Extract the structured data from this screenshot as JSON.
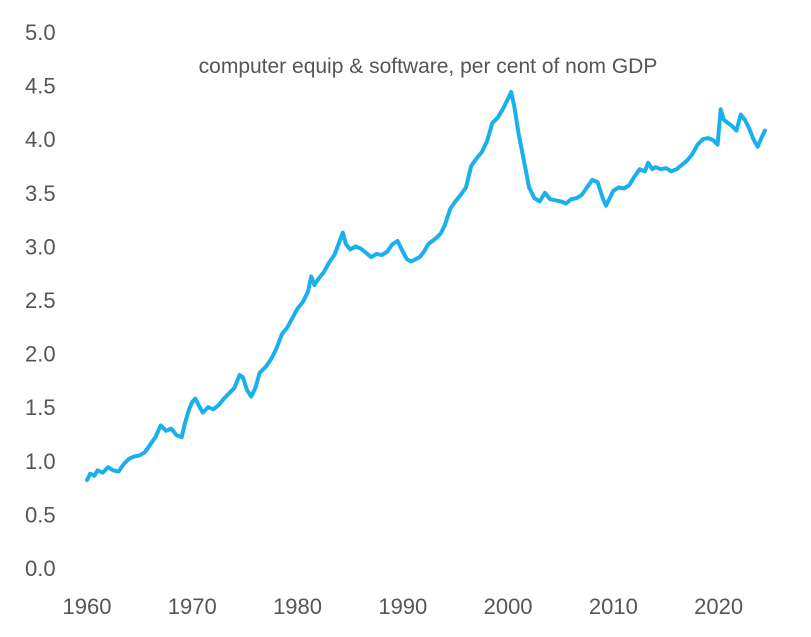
{
  "chart_data": {
    "type": "line",
    "title": "computer equip & software, per cent of nom GDP",
    "xlabel": "",
    "ylabel": "",
    "xlim": [
      1960,
      2024.5
    ],
    "ylim": [
      0,
      5
    ],
    "x_ticks": [
      "1960",
      "1970",
      "1980",
      "1990",
      "2000",
      "2010",
      "2020"
    ],
    "y_ticks": [
      "0.0",
      "0.5",
      "1.0",
      "1.5",
      "2.0",
      "2.5",
      "3.0",
      "3.5",
      "4.0",
      "4.5",
      "5.0"
    ],
    "grid": false,
    "legend": "none",
    "series": [
      {
        "color": "#1ab0ec",
        "points": [
          [
            1960.0,
            0.82
          ],
          [
            1960.3,
            0.88
          ],
          [
            1960.7,
            0.86
          ],
          [
            1961.0,
            0.91
          ],
          [
            1961.5,
            0.89
          ],
          [
            1962.0,
            0.94
          ],
          [
            1962.5,
            0.91
          ],
          [
            1963.0,
            0.9
          ],
          [
            1963.5,
            0.97
          ],
          [
            1964.0,
            1.02
          ],
          [
            1964.5,
            1.04
          ],
          [
            1965.0,
            1.05
          ],
          [
            1965.5,
            1.08
          ],
          [
            1966.0,
            1.15
          ],
          [
            1966.5,
            1.22
          ],
          [
            1967.0,
            1.33
          ],
          [
            1967.5,
            1.28
          ],
          [
            1968.0,
            1.3
          ],
          [
            1968.5,
            1.24
          ],
          [
            1969.0,
            1.22
          ],
          [
            1969.3,
            1.35
          ],
          [
            1969.7,
            1.48
          ],
          [
            1970.0,
            1.55
          ],
          [
            1970.3,
            1.58
          ],
          [
            1970.6,
            1.52
          ],
          [
            1971.0,
            1.45
          ],
          [
            1971.5,
            1.5
          ],
          [
            1972.0,
            1.48
          ],
          [
            1972.5,
            1.52
          ],
          [
            1973.0,
            1.58
          ],
          [
            1973.5,
            1.63
          ],
          [
            1974.0,
            1.68
          ],
          [
            1974.5,
            1.8
          ],
          [
            1974.8,
            1.78
          ],
          [
            1975.2,
            1.66
          ],
          [
            1975.6,
            1.6
          ],
          [
            1976.0,
            1.68
          ],
          [
            1976.4,
            1.82
          ],
          [
            1977.0,
            1.88
          ],
          [
            1977.5,
            1.95
          ],
          [
            1978.0,
            2.05
          ],
          [
            1978.5,
            2.18
          ],
          [
            1979.0,
            2.24
          ],
          [
            1979.5,
            2.33
          ],
          [
            1980.0,
            2.42
          ],
          [
            1980.5,
            2.48
          ],
          [
            1981.0,
            2.58
          ],
          [
            1981.3,
            2.72
          ],
          [
            1981.6,
            2.64
          ],
          [
            1982.0,
            2.7
          ],
          [
            1982.5,
            2.76
          ],
          [
            1983.0,
            2.85
          ],
          [
            1983.5,
            2.92
          ],
          [
            1984.0,
            3.05
          ],
          [
            1984.3,
            3.13
          ],
          [
            1984.6,
            3.02
          ],
          [
            1985.0,
            2.97
          ],
          [
            1985.5,
            3.0
          ],
          [
            1986.0,
            2.98
          ],
          [
            1986.5,
            2.94
          ],
          [
            1987.0,
            2.9
          ],
          [
            1987.5,
            2.93
          ],
          [
            1988.0,
            2.92
          ],
          [
            1988.5,
            2.95
          ],
          [
            1989.0,
            3.02
          ],
          [
            1989.5,
            3.05
          ],
          [
            1990.0,
            2.95
          ],
          [
            1990.4,
            2.88
          ],
          [
            1990.8,
            2.86
          ],
          [
            1991.2,
            2.88
          ],
          [
            1991.6,
            2.9
          ],
          [
            1992.0,
            2.95
          ],
          [
            1992.4,
            3.02
          ],
          [
            1992.8,
            3.05
          ],
          [
            1993.2,
            3.08
          ],
          [
            1993.6,
            3.12
          ],
          [
            1994.0,
            3.2
          ],
          [
            1994.5,
            3.35
          ],
          [
            1995.0,
            3.42
          ],
          [
            1995.5,
            3.48
          ],
          [
            1996.0,
            3.55
          ],
          [
            1996.5,
            3.75
          ],
          [
            1997.0,
            3.82
          ],
          [
            1997.5,
            3.88
          ],
          [
            1998.0,
            3.98
          ],
          [
            1998.5,
            4.15
          ],
          [
            1999.0,
            4.2
          ],
          [
            1999.5,
            4.28
          ],
          [
            2000.0,
            4.38
          ],
          [
            2000.3,
            4.44
          ],
          [
            2000.6,
            4.3
          ],
          [
            2001.0,
            4.05
          ],
          [
            2001.5,
            3.8
          ],
          [
            2002.0,
            3.55
          ],
          [
            2002.5,
            3.45
          ],
          [
            2003.0,
            3.42
          ],
          [
            2003.5,
            3.5
          ],
          [
            2004.0,
            3.44
          ],
          [
            2004.5,
            3.43
          ],
          [
            2005.0,
            3.42
          ],
          [
            2005.5,
            3.4
          ],
          [
            2006.0,
            3.44
          ],
          [
            2006.5,
            3.45
          ],
          [
            2007.0,
            3.48
          ],
          [
            2007.5,
            3.55
          ],
          [
            2008.0,
            3.62
          ],
          [
            2008.5,
            3.6
          ],
          [
            2009.0,
            3.45
          ],
          [
            2009.3,
            3.38
          ],
          [
            2009.7,
            3.46
          ],
          [
            2010.0,
            3.52
          ],
          [
            2010.5,
            3.55
          ],
          [
            2011.0,
            3.54
          ],
          [
            2011.5,
            3.57
          ],
          [
            2012.0,
            3.65
          ],
          [
            2012.5,
            3.72
          ],
          [
            2013.0,
            3.7
          ],
          [
            2013.3,
            3.78
          ],
          [
            2013.7,
            3.72
          ],
          [
            2014.0,
            3.74
          ],
          [
            2014.5,
            3.72
          ],
          [
            2015.0,
            3.73
          ],
          [
            2015.5,
            3.7
          ],
          [
            2016.0,
            3.72
          ],
          [
            2016.5,
            3.76
          ],
          [
            2017.0,
            3.8
          ],
          [
            2017.5,
            3.86
          ],
          [
            2018.0,
            3.95
          ],
          [
            2018.5,
            4.0
          ],
          [
            2019.0,
            4.01
          ],
          [
            2019.5,
            3.99
          ],
          [
            2019.9,
            3.95
          ],
          [
            2020.2,
            4.28
          ],
          [
            2020.5,
            4.18
          ],
          [
            2020.9,
            4.15
          ],
          [
            2021.3,
            4.12
          ],
          [
            2021.7,
            4.08
          ],
          [
            2022.1,
            4.23
          ],
          [
            2022.5,
            4.18
          ],
          [
            2022.9,
            4.1
          ],
          [
            2023.3,
            4.0
          ],
          [
            2023.7,
            3.93
          ],
          [
            2024.1,
            4.02
          ],
          [
            2024.4,
            4.08
          ]
        ]
      }
    ]
  }
}
